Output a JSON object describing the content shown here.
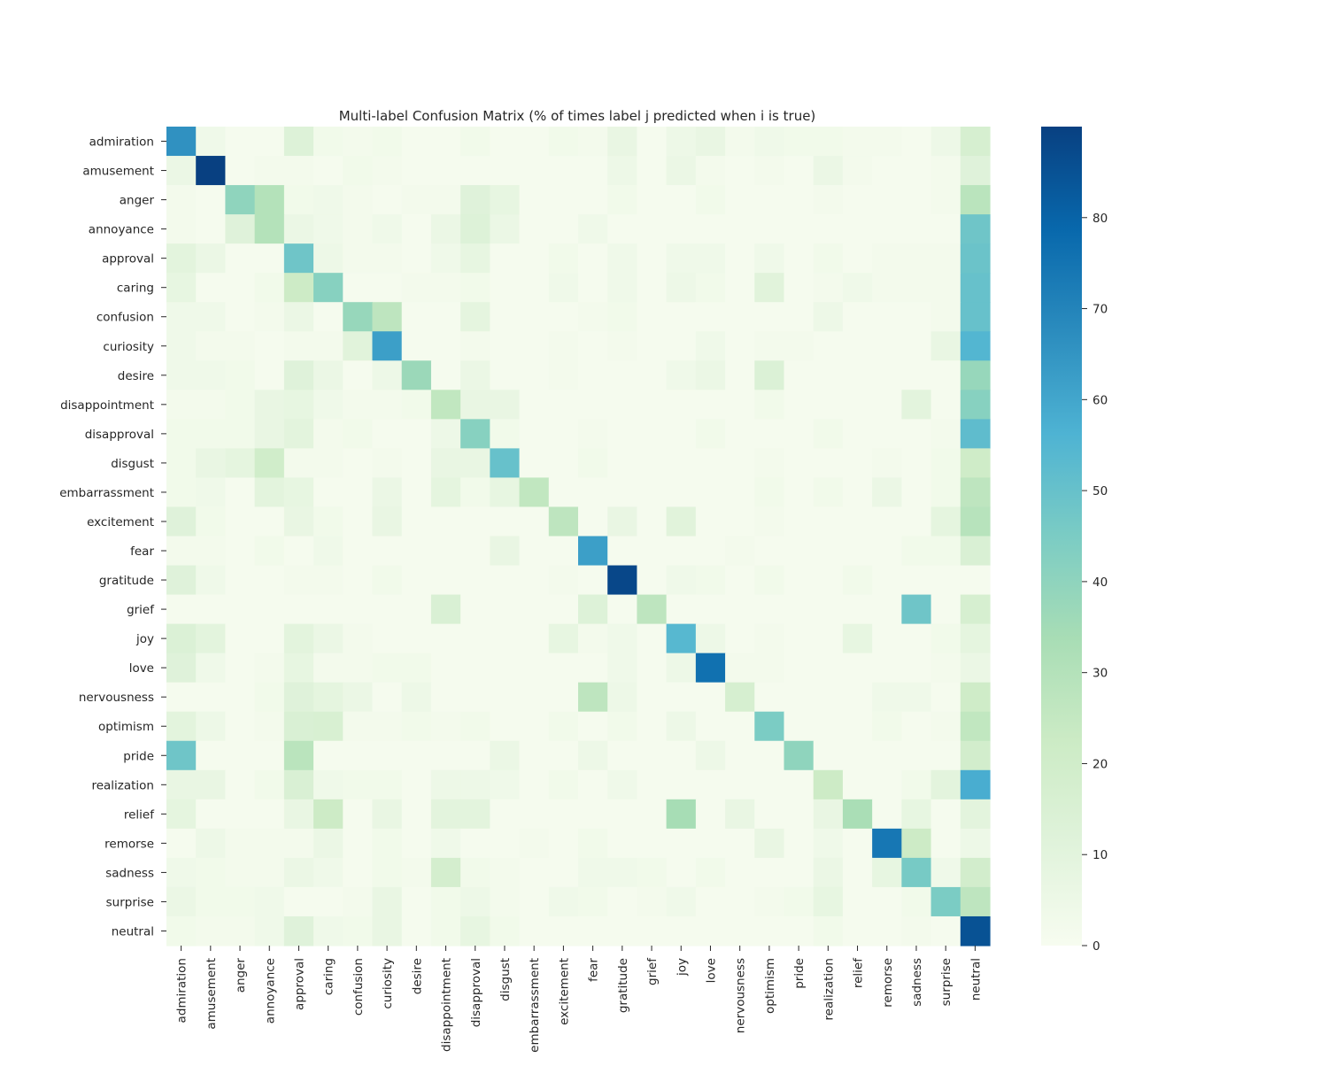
{
  "chart_data": {
    "type": "heatmap",
    "title": "Multi-label Confusion Matrix (% of times label j predicted when i is true)",
    "xlabel": "",
    "ylabel": "",
    "rows": [
      "admiration",
      "amusement",
      "anger",
      "annoyance",
      "approval",
      "caring",
      "confusion",
      "curiosity",
      "desire",
      "disappointment",
      "disapproval",
      "disgust",
      "embarrassment",
      "excitement",
      "fear",
      "gratitude",
      "grief",
      "joy",
      "love",
      "nervousness",
      "optimism",
      "pride",
      "realization",
      "relief",
      "remorse",
      "sadness",
      "surprise",
      "neutral"
    ],
    "columns": [
      "admiration",
      "amusement",
      "anger",
      "annoyance",
      "approval",
      "caring",
      "confusion",
      "curiosity",
      "desire",
      "disappointment",
      "disapproval",
      "disgust",
      "embarrassment",
      "excitement",
      "fear",
      "gratitude",
      "grief",
      "joy",
      "love",
      "nervousness",
      "optimism",
      "pride",
      "realization",
      "relief",
      "remorse",
      "sadness",
      "surprise",
      "neutral"
    ],
    "values": [
      [
        66,
        4,
        1,
        1,
        13,
        3,
        2,
        3,
        1,
        1,
        3,
        1,
        1,
        3,
        2,
        7,
        1,
        5,
        7,
        2,
        4,
        3,
        3,
        2,
        2,
        1,
        5,
        17
      ],
      [
        6,
        90,
        1,
        2,
        2,
        1,
        3,
        2,
        1,
        1,
        1,
        1,
        1,
        1,
        1,
        5,
        1,
        6,
        2,
        1,
        2,
        1,
        6,
        2,
        1,
        1,
        2,
        12
      ],
      [
        2,
        1,
        40,
        30,
        3,
        4,
        2,
        1,
        2,
        2,
        12,
        8,
        1,
        1,
        1,
        3,
        1,
        1,
        3,
        1,
        1,
        1,
        2,
        1,
        1,
        1,
        2,
        28
      ],
      [
        2,
        1,
        12,
        30,
        6,
        4,
        2,
        4,
        1,
        6,
        13,
        6,
        1,
        1,
        4,
        1,
        1,
        1,
        1,
        1,
        1,
        1,
        1,
        1,
        1,
        1,
        1,
        48
      ],
      [
        10,
        6,
        1,
        1,
        48,
        5,
        2,
        2,
        1,
        4,
        8,
        1,
        1,
        3,
        1,
        4,
        1,
        4,
        4,
        1,
        4,
        1,
        3,
        1,
        2,
        2,
        2,
        49
      ],
      [
        8,
        1,
        1,
        3,
        22,
        42,
        1,
        1,
        2,
        2,
        3,
        1,
        1,
        4,
        1,
        4,
        1,
        5,
        3,
        1,
        11,
        1,
        2,
        4,
        2,
        2,
        2,
        50
      ],
      [
        4,
        4,
        1,
        2,
        6,
        1,
        38,
        27,
        1,
        1,
        9,
        1,
        1,
        1,
        2,
        3,
        1,
        1,
        1,
        1,
        1,
        1,
        5,
        1,
        1,
        1,
        2,
        50
      ],
      [
        4,
        2,
        2,
        1,
        2,
        2,
        11,
        62,
        1,
        1,
        2,
        1,
        1,
        2,
        1,
        2,
        1,
        1,
        4,
        1,
        2,
        2,
        1,
        1,
        1,
        1,
        7,
        55
      ],
      [
        4,
        4,
        3,
        1,
        12,
        6,
        1,
        5,
        37,
        1,
        6,
        1,
        1,
        2,
        1,
        1,
        1,
        4,
        6,
        1,
        14,
        1,
        1,
        1,
        1,
        1,
        1,
        38
      ],
      [
        2,
        2,
        3,
        7,
        8,
        4,
        2,
        2,
        3,
        26,
        7,
        7,
        1,
        1,
        1,
        1,
        1,
        1,
        1,
        1,
        3,
        1,
        1,
        1,
        1,
        10,
        1,
        42
      ],
      [
        3,
        3,
        3,
        7,
        10,
        2,
        3,
        1,
        1,
        5,
        42,
        3,
        1,
        1,
        2,
        1,
        1,
        1,
        3,
        1,
        1,
        1,
        3,
        1,
        1,
        1,
        2,
        52
      ],
      [
        3,
        7,
        9,
        20,
        2,
        2,
        1,
        2,
        1,
        7,
        7,
        50,
        1,
        1,
        3,
        1,
        1,
        1,
        1,
        1,
        2,
        1,
        1,
        1,
        2,
        1,
        3,
        21
      ],
      [
        3,
        4,
        1,
        10,
        8,
        1,
        1,
        6,
        1,
        9,
        3,
        8,
        26,
        1,
        1,
        1,
        1,
        1,
        1,
        1,
        3,
        1,
        3,
        1,
        6,
        1,
        3,
        27
      ],
      [
        12,
        3,
        1,
        1,
        7,
        3,
        1,
        7,
        1,
        1,
        1,
        1,
        1,
        27,
        1,
        7,
        1,
        11,
        1,
        1,
        2,
        1,
        1,
        1,
        1,
        1,
        9,
        29
      ],
      [
        2,
        2,
        1,
        3,
        1,
        4,
        1,
        1,
        1,
        1,
        1,
        7,
        1,
        1,
        62,
        1,
        1,
        1,
        1,
        2,
        1,
        1,
        1,
        1,
        1,
        3,
        3,
        15
      ],
      [
        12,
        4,
        1,
        1,
        2,
        2,
        1,
        3,
        1,
        1,
        1,
        1,
        1,
        2,
        1,
        88,
        1,
        4,
        3,
        1,
        3,
        1,
        1,
        3,
        1,
        1,
        1,
        1
      ],
      [
        1,
        1,
        1,
        1,
        1,
        1,
        1,
        1,
        1,
        15,
        1,
        1,
        1,
        1,
        13,
        1,
        27,
        1,
        1,
        1,
        1,
        1,
        1,
        1,
        1,
        48,
        1,
        17
      ],
      [
        14,
        10,
        1,
        1,
        10,
        6,
        2,
        1,
        1,
        1,
        1,
        1,
        1,
        8,
        2,
        4,
        1,
        54,
        5,
        1,
        2,
        1,
        1,
        8,
        1,
        1,
        3,
        9
      ],
      [
        12,
        4,
        1,
        2,
        8,
        2,
        2,
        3,
        3,
        1,
        1,
        1,
        1,
        1,
        1,
        4,
        1,
        5,
        76,
        2,
        2,
        1,
        1,
        1,
        1,
        1,
        2,
        6
      ],
      [
        1,
        1,
        1,
        3,
        12,
        9,
        6,
        1,
        5,
        1,
        1,
        1,
        1,
        1,
        27,
        5,
        1,
        1,
        1,
        17,
        1,
        1,
        1,
        1,
        4,
        4,
        1,
        21
      ],
      [
        10,
        5,
        1,
        2,
        15,
        16,
        2,
        2,
        3,
        2,
        3,
        1,
        1,
        3,
        1,
        3,
        1,
        5,
        1,
        1,
        45,
        1,
        1,
        1,
        3,
        1,
        2,
        26
      ],
      [
        48,
        1,
        1,
        1,
        28,
        1,
        1,
        1,
        1,
        1,
        1,
        6,
        1,
        1,
        5,
        1,
        1,
        1,
        5,
        1,
        1,
        40,
        1,
        1,
        1,
        1,
        1,
        19
      ],
      [
        7,
        7,
        1,
        3,
        15,
        4,
        3,
        3,
        1,
        5,
        5,
        4,
        1,
        3,
        1,
        4,
        1,
        1,
        1,
        1,
        1,
        1,
        22,
        1,
        1,
        3,
        10,
        58
      ],
      [
        9,
        1,
        1,
        1,
        7,
        22,
        1,
        7,
        1,
        10,
        10,
        1,
        1,
        1,
        1,
        1,
        1,
        34,
        1,
        7,
        1,
        1,
        7,
        33,
        1,
        8,
        1,
        10
      ],
      [
        1,
        5,
        2,
        2,
        2,
        6,
        1,
        3,
        1,
        4,
        1,
        1,
        2,
        1,
        3,
        1,
        1,
        1,
        1,
        1,
        7,
        1,
        4,
        1,
        74,
        22,
        1,
        5
      ],
      [
        4,
        3,
        2,
        2,
        6,
        4,
        1,
        3,
        2,
        18,
        3,
        2,
        1,
        1,
        4,
        4,
        3,
        1,
        3,
        1,
        1,
        1,
        6,
        1,
        8,
        46,
        4,
        19
      ],
      [
        6,
        3,
        3,
        4,
        1,
        1,
        2,
        7,
        1,
        3,
        5,
        2,
        1,
        4,
        3,
        1,
        2,
        4,
        1,
        1,
        2,
        3,
        8,
        1,
        1,
        3,
        45,
        27
      ],
      [
        3,
        2,
        2,
        4,
        12,
        4,
        3,
        7,
        1,
        3,
        8,
        3,
        1,
        1,
        1,
        1,
        1,
        1,
        1,
        1,
        1,
        1,
        3,
        1,
        1,
        2,
        1,
        85
      ]
    ],
    "colorbar": {
      "range": [
        0,
        90
      ],
      "ticks": [
        0,
        10,
        20,
        30,
        40,
        50,
        60,
        70,
        80
      ]
    },
    "colormap": "YlGnBu",
    "grid": false
  }
}
